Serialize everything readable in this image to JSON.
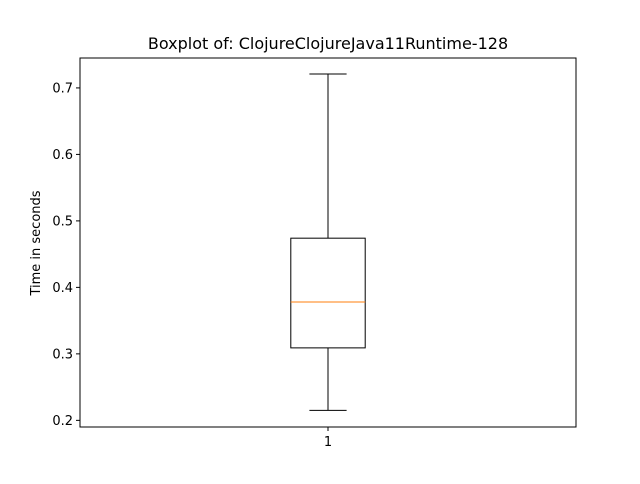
{
  "chart_data": {
    "type": "boxplot",
    "title": "Boxplot of: ClojureClojureJava11Runtime-128",
    "xlabel": "",
    "ylabel": "Time in seconds",
    "categories": [
      "1"
    ],
    "boxes": [
      {
        "category": "1",
        "whisker_low": 0.215,
        "q1": 0.309,
        "median": 0.378,
        "q3": 0.474,
        "whisker_high": 0.721
      }
    ],
    "yticks": [
      0.2,
      0.3,
      0.4,
      0.5,
      0.6,
      0.7
    ],
    "ylim": [
      0.19,
      0.745
    ],
    "grid": false,
    "colors": {
      "box": "#000000",
      "median": "#ff7f0e",
      "axes": "#000000"
    }
  }
}
